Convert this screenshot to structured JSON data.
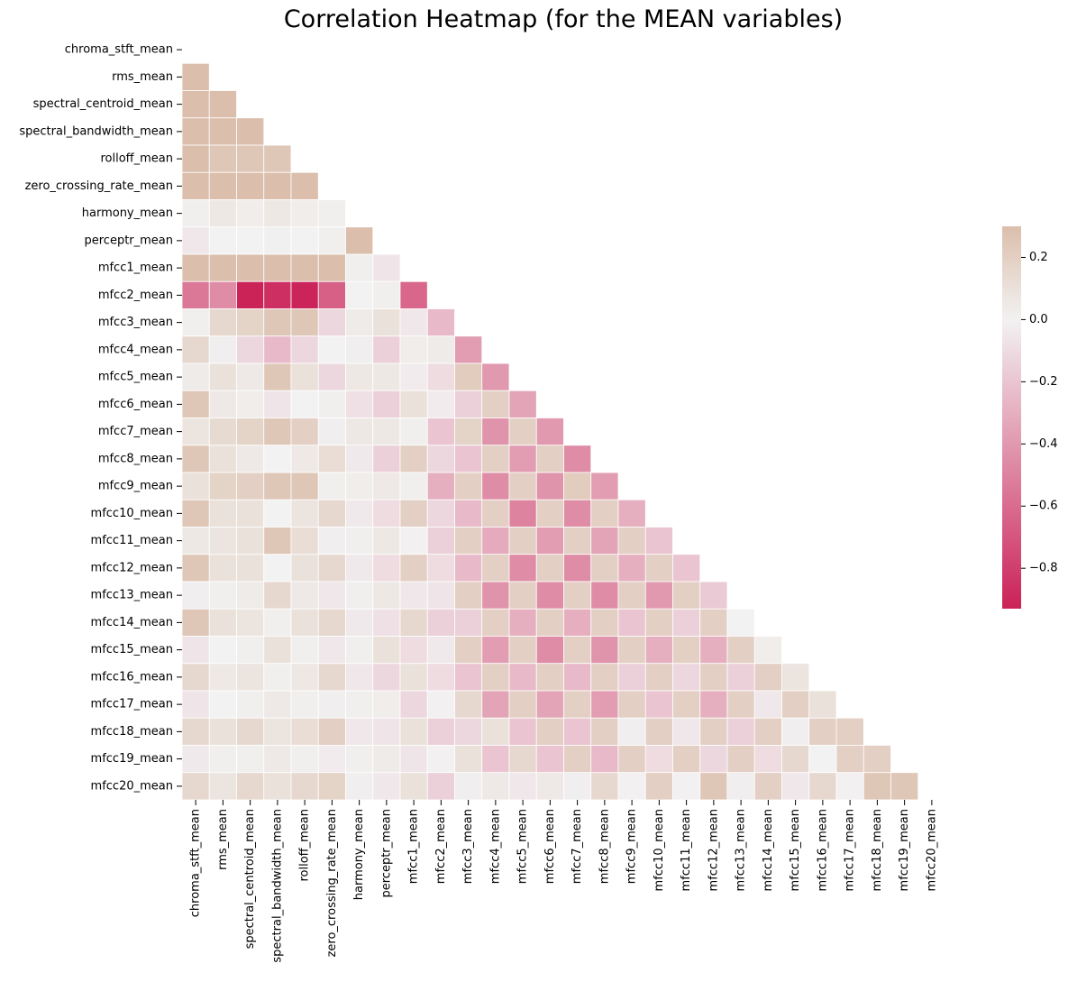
{
  "chart_data": {
    "type": "heatmap",
    "title": "Correlation Heatmap (for the MEAN variables)",
    "mask": "upper-triangle-including-diagonal",
    "labels": [
      "chroma_stft_mean",
      "rms_mean",
      "spectral_centroid_mean",
      "spectral_bandwidth_mean",
      "rolloff_mean",
      "zero_crossing_rate_mean",
      "harmony_mean",
      "perceptr_mean",
      "mfcc1_mean",
      "mfcc2_mean",
      "mfcc3_mean",
      "mfcc4_mean",
      "mfcc5_mean",
      "mfcc6_mean",
      "mfcc7_mean",
      "mfcc8_mean",
      "mfcc9_mean",
      "mfcc10_mean",
      "mfcc11_mean",
      "mfcc12_mean",
      "mfcc13_mean",
      "mfcc14_mean",
      "mfcc15_mean",
      "mfcc16_mean",
      "mfcc17_mean",
      "mfcc18_mean",
      "mfcc19_mean",
      "mfcc20_mean"
    ],
    "values": [
      [],
      [
        0.3
      ],
      [
        0.3,
        0.3
      ],
      [
        0.3,
        0.3,
        0.3
      ],
      [
        0.3,
        0.25,
        0.25,
        0.25
      ],
      [
        0.3,
        0.3,
        0.3,
        0.3,
        0.3
      ],
      [
        0.02,
        0.06,
        0.03,
        0.06,
        0.03,
        0.02
      ],
      [
        -0.05,
        0.0,
        0.0,
        0.01,
        0.0,
        0.02,
        0.3
      ],
      [
        0.3,
        0.3,
        0.3,
        0.3,
        0.3,
        0.3,
        0.02,
        -0.06
      ],
      [
        -0.55,
        -0.45,
        -0.93,
        -0.87,
        -0.92,
        -0.65,
        0.0,
        0.02,
        -0.62
      ],
      [
        0.02,
        0.15,
        0.18,
        0.25,
        0.25,
        -0.12,
        0.04,
        0.1,
        -0.05,
        -0.25
      ],
      [
        0.15,
        -0.02,
        -0.12,
        -0.25,
        -0.12,
        0.0,
        -0.02,
        -0.15,
        0.03,
        0.04,
        -0.38
      ],
      [
        0.04,
        0.1,
        0.05,
        0.25,
        0.1,
        -0.12,
        0.06,
        0.06,
        -0.03,
        -0.1,
        0.22,
        -0.4
      ],
      [
        0.25,
        0.05,
        0.03,
        -0.06,
        0.0,
        0.02,
        -0.08,
        -0.15,
        0.1,
        -0.03,
        -0.15,
        0.2,
        -0.35
      ],
      [
        0.08,
        0.14,
        0.18,
        0.25,
        0.2,
        -0.02,
        0.06,
        0.06,
        0.02,
        -0.2,
        0.18,
        -0.42,
        0.2,
        -0.4
      ],
      [
        0.25,
        0.1,
        0.05,
        0.0,
        0.05,
        0.12,
        -0.04,
        -0.15,
        0.2,
        -0.12,
        -0.2,
        0.2,
        -0.38,
        0.2,
        -0.45
      ],
      [
        0.1,
        0.18,
        0.2,
        0.25,
        0.25,
        0.02,
        0.03,
        0.05,
        0.02,
        -0.3,
        0.2,
        -0.45,
        0.2,
        -0.42,
        0.22,
        -0.38
      ],
      [
        0.25,
        0.1,
        0.1,
        0.0,
        0.08,
        0.15,
        -0.04,
        -0.1,
        0.2,
        -0.12,
        -0.25,
        0.2,
        -0.5,
        0.2,
        -0.45,
        0.2,
        -0.3
      ],
      [
        0.06,
        0.08,
        0.1,
        0.25,
        0.12,
        -0.02,
        0.02,
        0.06,
        -0.01,
        -0.15,
        0.2,
        -0.32,
        0.2,
        -0.38,
        0.2,
        -0.35,
        0.2,
        -0.2
      ],
      [
        0.25,
        0.1,
        0.1,
        0.0,
        0.1,
        0.15,
        -0.04,
        -0.1,
        0.2,
        -0.1,
        -0.25,
        0.2,
        -0.45,
        0.2,
        -0.45,
        0.2,
        -0.3,
        0.2,
        -0.2
      ],
      [
        -0.02,
        0.02,
        0.04,
        0.15,
        0.05,
        -0.05,
        0.02,
        0.06,
        -0.05,
        -0.06,
        0.2,
        -0.42,
        0.2,
        -0.45,
        0.2,
        -0.45,
        0.2,
        -0.4,
        0.2,
        -0.18
      ],
      [
        0.25,
        0.1,
        0.08,
        0.02,
        0.1,
        0.15,
        -0.04,
        -0.08,
        0.15,
        -0.15,
        -0.15,
        0.2,
        -0.3,
        0.2,
        -0.3,
        0.2,
        -0.2,
        0.2,
        -0.15,
        0.2,
        0.0
      ],
      [
        -0.06,
        0.0,
        0.02,
        0.1,
        0.02,
        -0.05,
        0.02,
        0.1,
        -0.1,
        -0.04,
        0.2,
        -0.38,
        0.2,
        -0.45,
        0.2,
        -0.42,
        0.2,
        -0.3,
        0.2,
        -0.3,
        0.2,
        0.03
      ],
      [
        0.15,
        0.05,
        0.08,
        0.02,
        0.06,
        0.15,
        -0.05,
        -0.12,
        0.1,
        -0.1,
        -0.2,
        0.2,
        -0.25,
        0.2,
        -0.25,
        0.2,
        -0.15,
        0.2,
        -0.12,
        0.2,
        -0.15,
        0.2,
        0.08
      ],
      [
        -0.06,
        0.0,
        0.02,
        0.05,
        0.02,
        -0.02,
        0.02,
        0.03,
        -0.12,
        -0.01,
        0.15,
        -0.35,
        0.2,
        -0.35,
        0.2,
        -0.38,
        0.2,
        -0.2,
        0.2,
        -0.3,
        0.2,
        -0.05,
        0.2,
        0.1
      ],
      [
        0.15,
        0.1,
        0.15,
        0.08,
        0.12,
        0.2,
        -0.05,
        -0.06,
        0.1,
        -0.15,
        -0.12,
        0.1,
        -0.2,
        0.2,
        -0.2,
        0.2,
        -0.02,
        0.2,
        -0.05,
        0.2,
        -0.15,
        0.2,
        -0.02,
        0.2,
        0.2
      ],
      [
        -0.04,
        0.02,
        0.02,
        0.05,
        0.02,
        -0.03,
        0.02,
        0.04,
        -0.06,
        -0.01,
        0.1,
        -0.2,
        0.15,
        -0.2,
        0.2,
        -0.25,
        0.2,
        -0.1,
        0.2,
        -0.12,
        0.2,
        -0.1,
        0.15,
        0.0,
        0.2,
        0.2
      ],
      [
        0.15,
        0.08,
        0.15,
        0.1,
        0.15,
        0.18,
        -0.02,
        -0.05,
        0.1,
        -0.15,
        -0.02,
        0.05,
        -0.05,
        0.05,
        -0.02,
        0.15,
        -0.01,
        0.2,
        -0.01,
        0.25,
        -0.02,
        0.2,
        -0.05,
        0.15,
        -0.01,
        0.25,
        0.25
      ]
    ],
    "colorbar": {
      "min": -0.93,
      "max": 0.3,
      "ticks": [
        0.2,
        0.0,
        -0.2,
        -0.4,
        -0.6,
        -0.8
      ],
      "tick_labels": [
        "0.2",
        "0.0",
        "−0.2",
        "−0.4",
        "−0.6",
        "−0.8"
      ]
    },
    "colors": {
      "positive": "#dbbeab",
      "mid": "#f2f2f2",
      "negative": "#cb2258"
    },
    "grid": true,
    "legend": "right (colorbar)"
  }
}
